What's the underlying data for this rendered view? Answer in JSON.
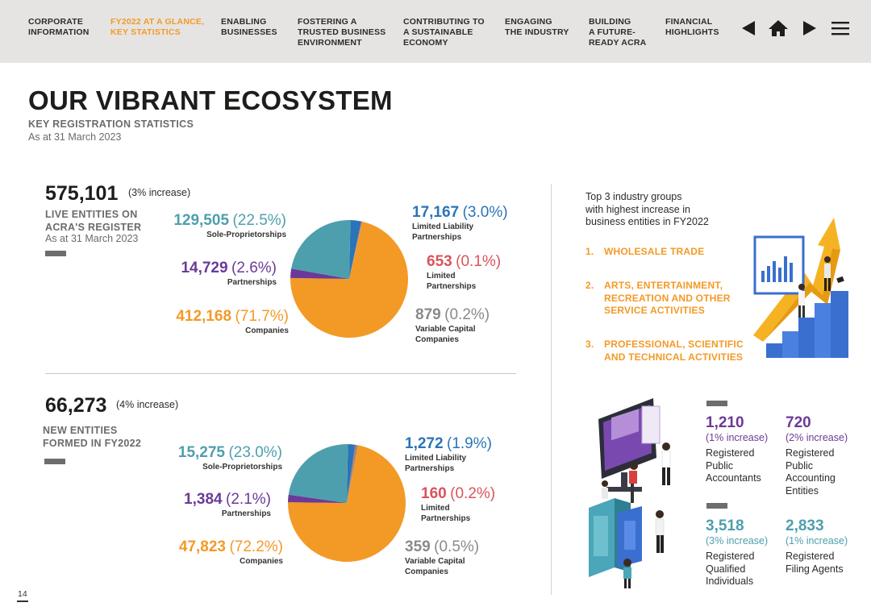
{
  "nav": {
    "items": [
      {
        "lines": [
          "CORPORATE",
          "INFORMATION"
        ],
        "active": false
      },
      {
        "lines": [
          "FY2022 AT A GLANCE,",
          "KEY STATISTICS"
        ],
        "active": true
      },
      {
        "lines": [
          "ENABLING",
          "BUSINESSES"
        ],
        "active": false
      },
      {
        "lines": [
          "FOSTERING A",
          "TRUSTED BUSINESS",
          "ENVIRONMENT"
        ],
        "active": false
      },
      {
        "lines": [
          "CONTRIBUTING TO",
          "A SUSTAINABLE",
          "ECONOMY"
        ],
        "active": false
      },
      {
        "lines": [
          "ENGAGING",
          "THE INDUSTRY"
        ],
        "active": false
      },
      {
        "lines": [
          "BUILDING",
          "A FUTURE-",
          "READY ACRA"
        ],
        "active": false
      },
      {
        "lines": [
          "FINANCIAL",
          "HIGHLIGHTS"
        ],
        "active": false
      }
    ],
    "icons": [
      "previous-page-icon",
      "home-icon",
      "next-page-icon",
      "menu-icon"
    ]
  },
  "heading": {
    "title": "OUR VIBRANT ECOSYSTEM",
    "subtitle": "KEY REGISTRATION STATISTICS",
    "date": "As at 31 March 2023"
  },
  "live": {
    "total": "575,101",
    "increase": "(3% increase)",
    "label_lines": [
      "LIVE ENTITIES ON",
      "ACRA'S REGISTER"
    ],
    "sublabel": "As at 31 March 2023",
    "segments": {
      "sole": {
        "value": "129,505",
        "pct": "(22.5%)",
        "name": "Sole-Proprietorships"
      },
      "partnerships": {
        "value": "14,729",
        "pct": "(2.6%)",
        "name": "Partnerships"
      },
      "companies": {
        "value": "412,168",
        "pct": "(71.7%)",
        "name": "Companies"
      },
      "llp": {
        "value": "17,167",
        "pct": "(3.0%)",
        "name_lines": [
          "Limited Liability",
          "Partnerships"
        ]
      },
      "lp": {
        "value": "653",
        "pct": "(0.1%)",
        "name_lines": [
          "Limited",
          "Partnerships"
        ]
      },
      "vcc": {
        "value": "879",
        "pct": "(0.2%)",
        "name_lines": [
          "Variable Capital",
          "Companies"
        ]
      }
    }
  },
  "new": {
    "total": "66,273",
    "increase": "(4% increase)",
    "label_lines": [
      "NEW ENTITIES",
      "FORMED IN FY2022"
    ],
    "segments": {
      "sole": {
        "value": "15,275",
        "pct": "(23.0%)",
        "name": "Sole-Proprietorships"
      },
      "partnerships": {
        "value": "1,384",
        "pct": "(2.1%)",
        "name": "Partnerships"
      },
      "companies": {
        "value": "47,823",
        "pct": "(72.2%)",
        "name": "Companies"
      },
      "llp": {
        "value": "1,272",
        "pct": "(1.9%)",
        "name_lines": [
          "Limited Liability",
          "Partnerships"
        ]
      },
      "lp": {
        "value": "160",
        "pct": "(0.2%)",
        "name_lines": [
          "Limited",
          "Partnerships"
        ]
      },
      "vcc": {
        "value": "359",
        "pct": "(0.5%)",
        "name_lines": [
          "Variable Capital",
          "Companies"
        ]
      }
    }
  },
  "colors": {
    "sole": "#4e9fad",
    "partnerships": "#6b3a98",
    "companies": "#f39a26",
    "llp": "#2a74b8",
    "lp": "#d9545a",
    "vcc": "#8a8a8a",
    "accent": "#f39a26"
  },
  "chart_data": [
    {
      "type": "pie",
      "categories": [
        "Sole-Proprietorships",
        "Partnerships",
        "Companies",
        "Limited Liability Partnerships",
        "Limited Partnerships",
        "Variable Capital Companies"
      ],
      "values": [
        129505,
        14729,
        412168,
        17167,
        653,
        879
      ],
      "percentages": [
        22.5,
        2.6,
        71.7,
        3.0,
        0.1,
        0.2
      ]
    },
    {
      "type": "pie",
      "categories": [
        "Sole-Proprietorships",
        "Partnerships",
        "Companies",
        "Limited Liability Partnerships",
        "Limited Partnerships",
        "Variable Capital Companies"
      ],
      "values": [
        15275,
        1384,
        47823,
        1272,
        160,
        359
      ],
      "percentages": [
        23.0,
        2.1,
        72.2,
        1.9,
        0.2,
        0.5
      ]
    }
  ],
  "industries": {
    "intro_lines": [
      "Top 3 industry groups",
      "with highest increase in",
      "business entities in FY2022"
    ],
    "items": [
      {
        "num": "1.",
        "lines": [
          "WHOLESALE TRADE"
        ]
      },
      {
        "num": "2.",
        "lines": [
          "ARTS, ENTERTAINMENT,",
          "RECREATION AND OTHER",
          "SERVICE ACTIVITIES"
        ]
      },
      {
        "num": "3.",
        "lines": [
          "PROFESSIONAL, SCIENTIFIC",
          "AND TECHNICAL ACTIVITIES"
        ]
      }
    ]
  },
  "professionals": [
    {
      "value": "1,210",
      "increase": "(1% increase)",
      "label_lines": [
        "Registered",
        "Public",
        "Accountants"
      ],
      "color": "#6b3a98"
    },
    {
      "value": "720",
      "increase": "(2% increase)",
      "label_lines": [
        "Registered",
        "Public",
        "Accounting",
        "Entities"
      ],
      "color": "#6b3a98"
    },
    {
      "value": "3,518",
      "increase": "(3% increase)",
      "label_lines": [
        "Registered",
        "Qualified",
        "Individuals"
      ],
      "color": "#4e9fad"
    },
    {
      "value": "2,833",
      "increase": "(1% increase)",
      "label_lines": [
        "Registered",
        "Filing Agents"
      ],
      "color": "#4e9fad"
    }
  ],
  "page_number": "14"
}
